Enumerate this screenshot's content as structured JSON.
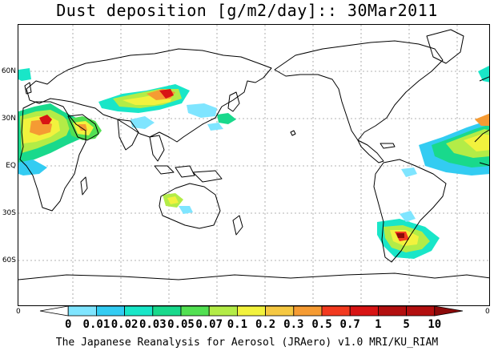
{
  "title": "Dust deposition [g/m2/day]:: 30Mar2011",
  "footer": "The Japanese Reanalysis for Aerosol (JRAero) v1.0 MRI/KU_RIAM",
  "lat_labels": [
    "60N",
    "30N",
    "EQ",
    "30S",
    "60S"
  ],
  "edge_labels": {
    "left": "0",
    "right": "0"
  },
  "colorbar": {
    "labels": [
      "0",
      "0.01",
      "0.02",
      "0.03",
      "0.05",
      "0.07",
      "0.1",
      "0.2",
      "0.3",
      "0.5",
      "0.7",
      "1",
      "5",
      "10"
    ],
    "colors": [
      "#ffffff",
      "#7fe5ff",
      "#33ccf2",
      "#19e6c8",
      "#19d98c",
      "#52e052",
      "#b3ec47",
      "#f2f23d",
      "#f5c842",
      "#f59b33",
      "#f23a1f",
      "#d81414",
      "#b30f0f",
      "#8c0a0a"
    ]
  },
  "palette": {
    "coast": "#000000",
    "grid": "#9a9a9a"
  }
}
